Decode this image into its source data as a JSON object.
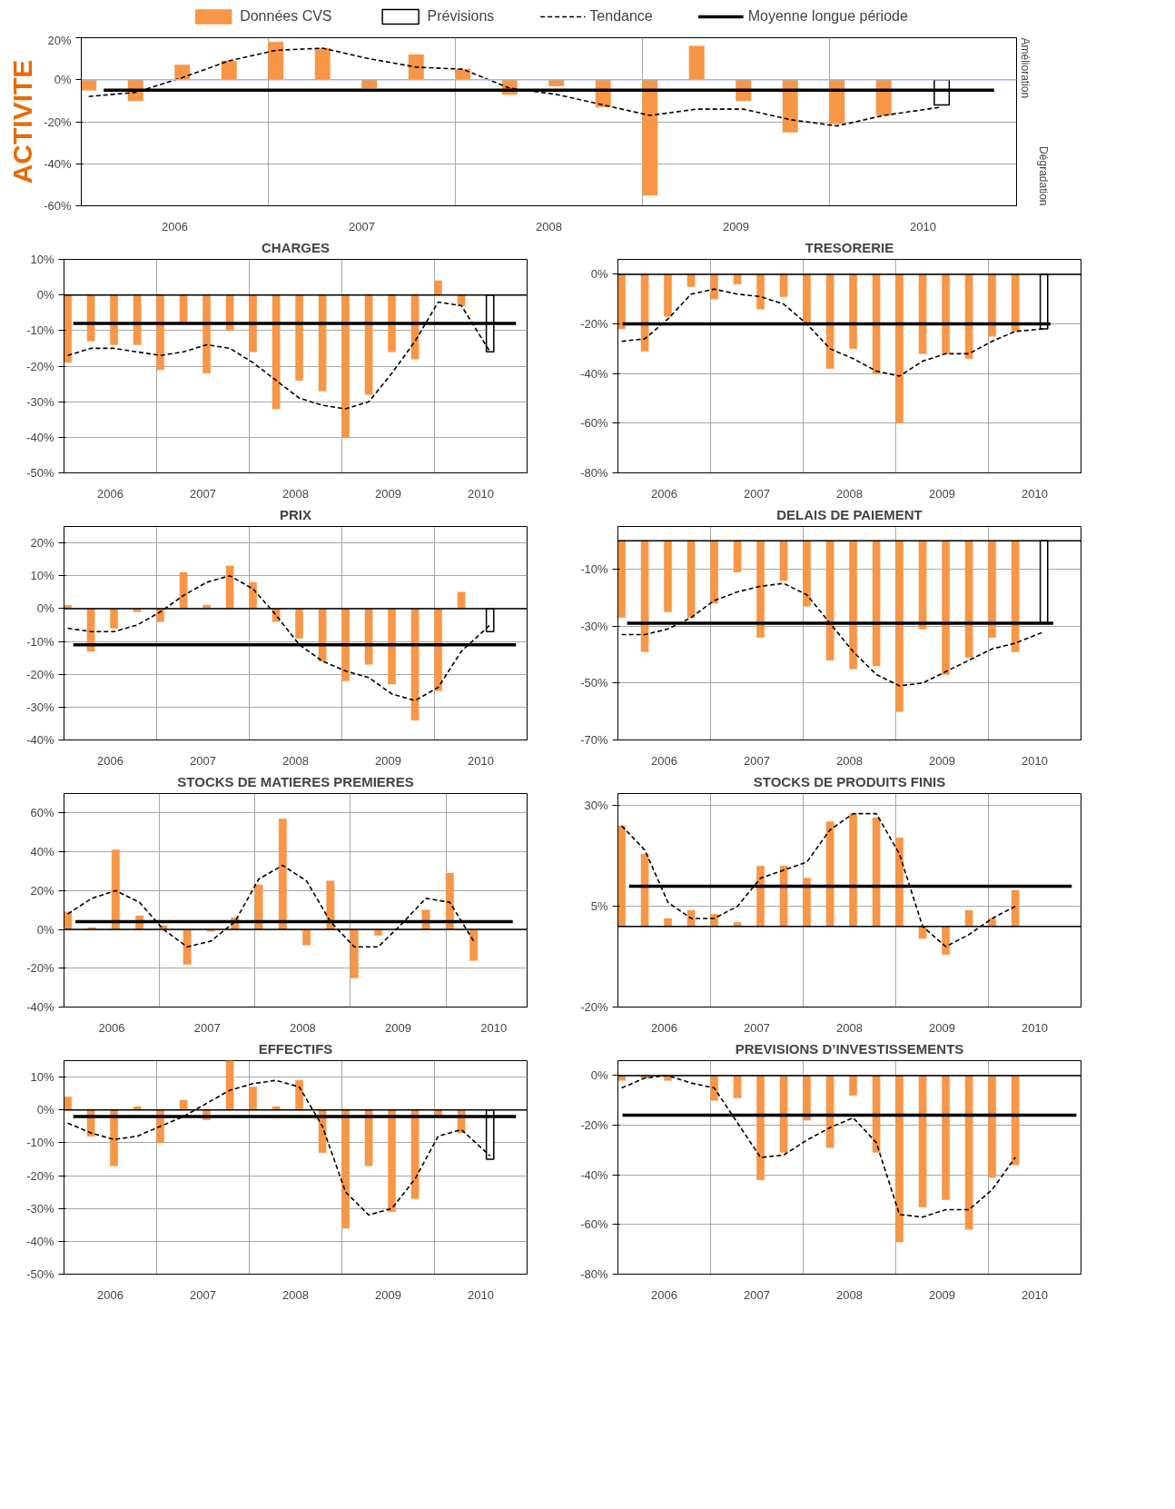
{
  "chart_data": [
    {
      "type": "bar",
      "title": "ACTIVITE",
      "legend": "top",
      "grid": true,
      "annotations": [
        "Amélioration",
        "Dégradation"
      ],
      "x": [
        2006.04,
        2006.29,
        2006.54,
        2006.79,
        2007.04,
        2007.29,
        2007.54,
        2007.79,
        2008.04,
        2008.29,
        2008.54,
        2008.79,
        2009.04,
        2009.29,
        2009.54,
        2009.79,
        2010.04,
        2010.29
      ],
      "xlim": [
        2006,
        2011
      ],
      "xticks": [
        {
          "value": 2006.5,
          "label": "2006"
        },
        {
          "value": 2007,
          "label": null
        },
        {
          "value": 2007.5,
          "label": "2007"
        },
        {
          "value": 2008,
          "label": null
        },
        {
          "value": 2008.5,
          "label": "2008"
        },
        {
          "value": 2009,
          "label": null
        },
        {
          "value": 2009.5,
          "label": "2009"
        },
        {
          "value": 2010,
          "label": null
        },
        {
          "value": 2010.5,
          "label": "2010"
        }
      ],
      "ylim": [
        -60,
        20
      ],
      "yticks": [
        {
          "value": -60,
          "label": "-60%"
        },
        {
          "value": -40,
          "label": "-40%"
        },
        {
          "value": -20,
          "label": "-20%"
        },
        {
          "value": 0,
          "label": "0%"
        },
        {
          "value": 20,
          "label": "20%"
        }
      ],
      "ref_lines": [
        {
          "axis": "y",
          "value": 0,
          "color": "#9db9e0"
        }
      ],
      "series": [
        {
          "name": "Données CVS",
          "color": "#f79646",
          "values": [
            -5,
            -10,
            7,
            9,
            18,
            15,
            -4,
            12,
            5,
            -7,
            -3,
            -13,
            -55,
            16,
            -10,
            -25,
            -21,
            -17
          ]
        },
        {
          "name": "Prévisions",
          "color": "#ffffff",
          "x": [
            2010.6
          ],
          "values": [
            -12
          ]
        },
        {
          "name": "Tendance",
          "type": "line",
          "line_style": "dashed",
          "color": "#000000",
          "x": [
            2006.04,
            2006.29,
            2006.54,
            2006.79,
            2007.04,
            2007.29,
            2007.54,
            2007.79,
            2008.04,
            2008.29,
            2008.54,
            2008.79,
            2009.04,
            2009.29,
            2009.54,
            2009.79,
            2010.04,
            2010.29,
            2010.6
          ],
          "values": [
            -8,
            -6,
            1,
            9,
            14,
            15,
            10,
            6,
            5,
            -4,
            -7,
            -12,
            -17,
            -14,
            -14,
            -19,
            -22,
            -17,
            -13
          ]
        },
        {
          "name": "Moyenne longue période",
          "type": "line",
          "line_style": "solid",
          "color": "#000000",
          "x": [
            2006.12,
            2010.88
          ],
          "values": [
            -5,
            -5
          ]
        }
      ]
    },
    {
      "type": "bar",
      "title": "CHARGES",
      "grid": true,
      "x": [
        2006.04,
        2006.29,
        2006.54,
        2006.79,
        2007.04,
        2007.29,
        2007.54,
        2007.79,
        2008.04,
        2008.29,
        2008.54,
        2008.79,
        2009.04,
        2009.29,
        2009.54,
        2009.79,
        2010.04,
        2010.29
      ],
      "xlim": [
        2006,
        2011
      ],
      "xticks": [
        {
          "value": 2006.5,
          "label": "2006"
        },
        {
          "value": 2007,
          "label": null
        },
        {
          "value": 2007.5,
          "label": "2007"
        },
        {
          "value": 2008,
          "label": null
        },
        {
          "value": 2008.5,
          "label": "2008"
        },
        {
          "value": 2009,
          "label": null
        },
        {
          "value": 2009.5,
          "label": "2009"
        },
        {
          "value": 2010,
          "label": null
        },
        {
          "value": 2010.5,
          "label": "2010"
        }
      ],
      "ylim": [
        -50,
        10
      ],
      "yticks": [
        {
          "value": -50,
          "label": "-50%"
        },
        {
          "value": -40,
          "label": "-40%"
        },
        {
          "value": -30,
          "label": "-30%"
        },
        {
          "value": -20,
          "label": "-20%"
        },
        {
          "value": -10,
          "label": "-10%"
        },
        {
          "value": 0,
          "label": "0%"
        },
        {
          "value": 10,
          "label": "10%"
        }
      ],
      "ref_lines": [
        {
          "axis": "y",
          "value": 0,
          "color": "#000000"
        }
      ],
      "series": [
        {
          "color": "#f79646",
          "values": [
            -19,
            -13,
            -14,
            -14,
            -21,
            -8,
            -22,
            -10,
            -16,
            -32,
            -24,
            -27,
            -40,
            -28,
            -16,
            -18,
            4,
            -3
          ]
        },
        {
          "color": "#ffffff",
          "x": [
            2010.6
          ],
          "values": [
            -16
          ]
        },
        {
          "type": "line",
          "line_style": "dashed",
          "color": "#000000",
          "x": [
            2006.04,
            2006.29,
            2006.54,
            2006.79,
            2007.04,
            2007.29,
            2007.54,
            2007.79,
            2008.04,
            2008.29,
            2008.54,
            2008.79,
            2009.04,
            2009.29,
            2009.54,
            2009.79,
            2010.04,
            2010.29,
            2010.6
          ],
          "values": [
            -17,
            -15,
            -15,
            -16,
            -17,
            -16,
            -14,
            -15,
            -19,
            -24,
            -29,
            -31,
            -32,
            -30,
            -22,
            -13,
            -2,
            -3,
            -16
          ]
        },
        {
          "type": "line",
          "line_style": "solid",
          "color": "#000000",
          "x": [
            2006.1,
            2010.88
          ],
          "values": [
            -8,
            -8
          ]
        }
      ]
    },
    {
      "type": "bar",
      "title": "TRESORERIE",
      "grid": true,
      "x": [
        2006.04,
        2006.29,
        2006.54,
        2006.79,
        2007.04,
        2007.29,
        2007.54,
        2007.79,
        2008.04,
        2008.29,
        2008.54,
        2008.79,
        2009.04,
        2009.29,
        2009.54,
        2009.79,
        2010.04,
        2010.29
      ],
      "xlim": [
        2006,
        2011
      ],
      "xticks": [
        {
          "value": 2006.5,
          "label": "2006"
        },
        {
          "value": 2007,
          "label": null
        },
        {
          "value": 2007.5,
          "label": "2007"
        },
        {
          "value": 2008,
          "label": null
        },
        {
          "value": 2008.5,
          "label": "2008"
        },
        {
          "value": 2009,
          "label": null
        },
        {
          "value": 2009.5,
          "label": "2009"
        },
        {
          "value": 2010,
          "label": null
        },
        {
          "value": 2010.5,
          "label": "2010"
        }
      ],
      "ylim": [
        -80,
        6
      ],
      "yticks": [
        {
          "value": -80,
          "label": "-80%"
        },
        {
          "value": -60,
          "label": "-60%"
        },
        {
          "value": -40,
          "label": "-40%"
        },
        {
          "value": -20,
          "label": "-20%"
        },
        {
          "value": 0,
          "label": "0%"
        }
      ],
      "ref_lines": [
        {
          "axis": "y",
          "value": 0,
          "color": "#000000"
        }
      ],
      "series": [
        {
          "color": "#f79646",
          "values": [
            -22,
            -31,
            -17,
            -5,
            -10,
            -4,
            -14,
            -9,
            -20,
            -38,
            -30,
            -40,
            -60,
            -32,
            -32,
            -34,
            -25,
            -23
          ]
        },
        {
          "color": "#ffffff",
          "x": [
            2010.6
          ],
          "values": [
            -22
          ]
        },
        {
          "type": "line",
          "line_style": "dashed",
          "color": "#000000",
          "x": [
            2006.04,
            2006.29,
            2006.54,
            2006.79,
            2007.04,
            2007.29,
            2007.54,
            2007.79,
            2008.04,
            2008.29,
            2008.54,
            2008.79,
            2009.04,
            2009.29,
            2009.54,
            2009.79,
            2010.04,
            2010.29,
            2010.6
          ],
          "values": [
            -27,
            -26,
            -18,
            -8,
            -6,
            -8,
            -9,
            -12,
            -20,
            -30,
            -34,
            -39,
            -41,
            -35,
            -32,
            -32,
            -27,
            -23,
            -22
          ]
        },
        {
          "type": "line",
          "line_style": "solid",
          "color": "#000000",
          "x": [
            2006.05,
            2010.67
          ],
          "values": [
            -20,
            -20
          ]
        }
      ]
    },
    {
      "type": "bar",
      "title": "PRIX",
      "grid": true,
      "x": [
        2006.04,
        2006.29,
        2006.54,
        2006.79,
        2007.04,
        2007.29,
        2007.54,
        2007.79,
        2008.04,
        2008.29,
        2008.54,
        2008.79,
        2009.04,
        2009.29,
        2009.54,
        2009.79,
        2010.04,
        2010.29
      ],
      "xlim": [
        2006,
        2011
      ],
      "xticks": [
        {
          "value": 2006.5,
          "label": "2006"
        },
        {
          "value": 2007,
          "label": null
        },
        {
          "value": 2007.5,
          "label": "2007"
        },
        {
          "value": 2008,
          "label": null
        },
        {
          "value": 2008.5,
          "label": "2008"
        },
        {
          "value": 2009,
          "label": null
        },
        {
          "value": 2009.5,
          "label": "2009"
        },
        {
          "value": 2010,
          "label": null
        },
        {
          "value": 2010.5,
          "label": "2010"
        }
      ],
      "ylim": [
        -40,
        25
      ],
      "yticks": [
        {
          "value": -40,
          "label": "-40%"
        },
        {
          "value": -30,
          "label": "-30%"
        },
        {
          "value": -20,
          "label": "-20%"
        },
        {
          "value": -10,
          "label": "-10%"
        },
        {
          "value": 0,
          "label": "0%"
        },
        {
          "value": 10,
          "label": "10%"
        },
        {
          "value": 20,
          "label": "20%"
        }
      ],
      "ref_lines": [
        {
          "axis": "y",
          "value": 0,
          "color": "#000000"
        }
      ],
      "series": [
        {
          "color": "#f79646",
          "values": [
            1,
            -13,
            -6,
            -1,
            -4,
            11,
            1,
            13,
            8,
            -4,
            -9,
            -16,
            -22,
            -17,
            -23,
            -34,
            -25,
            5
          ]
        },
        {
          "color": "#ffffff",
          "x": [
            2010.6
          ],
          "values": [
            -7
          ]
        },
        {
          "type": "line",
          "line_style": "dashed",
          "color": "#000000",
          "x": [
            2006.04,
            2006.29,
            2006.54,
            2006.79,
            2007.04,
            2007.29,
            2007.54,
            2007.79,
            2008.04,
            2008.29,
            2008.54,
            2008.79,
            2009.04,
            2009.29,
            2009.54,
            2009.79,
            2010.04,
            2010.29,
            2010.6
          ],
          "values": [
            -6,
            -7,
            -7,
            -5,
            -1,
            4,
            8,
            10,
            6,
            -2,
            -11,
            -16,
            -19,
            -21,
            -26,
            -28,
            -24,
            -13,
            -5
          ]
        },
        {
          "type": "line",
          "line_style": "solid",
          "color": "#000000",
          "x": [
            2006.1,
            2010.88
          ],
          "values": [
            -11,
            -11
          ]
        }
      ]
    },
    {
      "type": "bar",
      "title": "DELAIS DE PAIEMENT",
      "grid": true,
      "x": [
        2006.04,
        2006.29,
        2006.54,
        2006.79,
        2007.04,
        2007.29,
        2007.54,
        2007.79,
        2008.04,
        2008.29,
        2008.54,
        2008.79,
        2009.04,
        2009.29,
        2009.54,
        2009.79,
        2010.04,
        2010.29
      ],
      "xlim": [
        2006,
        2011
      ],
      "xticks": [
        {
          "value": 2006.5,
          "label": "2006"
        },
        {
          "value": 2007,
          "label": null
        },
        {
          "value": 2007.5,
          "label": "2007"
        },
        {
          "value": 2008,
          "label": null
        },
        {
          "value": 2008.5,
          "label": "2008"
        },
        {
          "value": 2009,
          "label": null
        },
        {
          "value": 2009.5,
          "label": "2009"
        },
        {
          "value": 2010,
          "label": null
        },
        {
          "value": 2010.5,
          "label": "2010"
        }
      ],
      "ylim": [
        -70,
        5
      ],
      "yticks": [
        {
          "value": -70,
          "label": "-70%"
        },
        {
          "value": -50,
          "label": "-50%"
        },
        {
          "value": -30,
          "label": "-30%"
        },
        {
          "value": -10,
          "label": "-10%"
        }
      ],
      "ref_lines": [
        {
          "axis": "y",
          "value": 0,
          "color": "#000000"
        }
      ],
      "series": [
        {
          "color": "#f79646",
          "values": [
            -27,
            -39,
            -25,
            -27,
            -22,
            -11,
            -34,
            -14,
            -23,
            -42,
            -45,
            -44,
            -60,
            -31,
            -47,
            -41,
            -34,
            -39
          ]
        },
        {
          "color": "#ffffff",
          "x": [
            2010.6
          ],
          "values": [
            -29
          ]
        },
        {
          "type": "line",
          "line_style": "dashed",
          "color": "#000000",
          "x": [
            2006.04,
            2006.29,
            2006.54,
            2006.79,
            2007.04,
            2007.29,
            2007.54,
            2007.79,
            2008.04,
            2008.29,
            2008.54,
            2008.79,
            2009.04,
            2009.29,
            2009.54,
            2009.79,
            2010.04,
            2010.29,
            2010.6
          ],
          "values": [
            -33,
            -33,
            -31,
            -27,
            -21,
            -18,
            -16,
            -15,
            -19,
            -29,
            -39,
            -47,
            -51,
            -50,
            -46,
            -42,
            -38,
            -36,
            -32
          ]
        },
        {
          "type": "line",
          "line_style": "solid",
          "color": "#000000",
          "x": [
            2006.1,
            2010.7
          ],
          "values": [
            -29,
            -29
          ]
        }
      ]
    },
    {
      "type": "bar",
      "title": "STOCKS DE MATIERES PREMIERES",
      "grid": true,
      "x": [
        2006.04,
        2006.29,
        2006.54,
        2006.79,
        2007.04,
        2007.29,
        2007.54,
        2007.79,
        2008.04,
        2008.29,
        2008.54,
        2008.79,
        2009.04,
        2009.29,
        2009.54,
        2009.79,
        2010.04,
        2010.29
      ],
      "xlim": [
        2006,
        2010.85
      ],
      "xticks": [
        {
          "value": 2006.5,
          "label": "2006"
        },
        {
          "value": 2007,
          "label": null
        },
        {
          "value": 2007.5,
          "label": "2007"
        },
        {
          "value": 2008,
          "label": null
        },
        {
          "value": 2008.5,
          "label": "2008"
        },
        {
          "value": 2009,
          "label": null
        },
        {
          "value": 2009.5,
          "label": "2009"
        },
        {
          "value": 2010,
          "label": null
        },
        {
          "value": 2010.5,
          "label": "2010"
        }
      ],
      "ylim": [
        -40,
        70
      ],
      "yticks": [
        {
          "value": -40,
          "label": "-40%"
        },
        {
          "value": -20,
          "label": "-20%"
        },
        {
          "value": 0,
          "label": "0%"
        },
        {
          "value": 20,
          "label": "20%"
        },
        {
          "value": 40,
          "label": "40%"
        },
        {
          "value": 60,
          "label": "60%"
        }
      ],
      "ref_lines": [
        {
          "axis": "y",
          "value": 0,
          "color": "#000000"
        }
      ],
      "series": [
        {
          "color": "#f79646",
          "values": [
            9,
            1,
            41,
            7,
            2,
            -18,
            -1,
            6,
            23,
            57,
            -8,
            25,
            -25,
            -3,
            null,
            10,
            29,
            -16
          ]
        },
        {
          "type": "line",
          "line_style": "dashed",
          "color": "#000000",
          "values": [
            8,
            16,
            20,
            14,
            0,
            -9,
            -6,
            4,
            26,
            33,
            25,
            4,
            -9,
            -9,
            3,
            16,
            14,
            -6
          ]
        },
        {
          "type": "line",
          "line_style": "solid",
          "color": "#000000",
          "x": [
            2006.12,
            2010.7
          ],
          "values": [
            4,
            4
          ]
        }
      ]
    },
    {
      "type": "bar",
      "title": "STOCKS DE PRODUITS FINIS",
      "grid": true,
      "x": [
        2006.04,
        2006.29,
        2006.54,
        2006.79,
        2007.04,
        2007.29,
        2007.54,
        2007.79,
        2008.04,
        2008.29,
        2008.54,
        2008.79,
        2009.04,
        2009.29,
        2009.54,
        2009.79,
        2010.04,
        2010.29
      ],
      "xlim": [
        2006,
        2011
      ],
      "xticks": [
        {
          "value": 2006.5,
          "label": "2006"
        },
        {
          "value": 2007,
          "label": null
        },
        {
          "value": 2007.5,
          "label": "2007"
        },
        {
          "value": 2008,
          "label": null
        },
        {
          "value": 2008.5,
          "label": "2008"
        },
        {
          "value": 2009,
          "label": null
        },
        {
          "value": 2009.5,
          "label": "2009"
        },
        {
          "value": 2010,
          "label": null
        },
        {
          "value": 2010.5,
          "label": "2010"
        }
      ],
      "ylim": [
        -20,
        33
      ],
      "yticks": [
        {
          "value": -20,
          "label": "-20%"
        },
        {
          "value": 5,
          "label": "5%"
        },
        {
          "value": 30,
          "label": "30%"
        }
      ],
      "ref_lines": [
        {
          "axis": "y",
          "value": 0,
          "color": "#000000"
        }
      ],
      "series": [
        {
          "color": "#f79646",
          "values": [
            25,
            18,
            2,
            4,
            3,
            1,
            15,
            15,
            12,
            26,
            28,
            27,
            22,
            -3,
            -7,
            4,
            2,
            9
          ]
        },
        {
          "type": "line",
          "line_style": "dashed",
          "color": "#000000",
          "values": [
            25,
            19,
            6,
            2,
            2,
            5,
            12,
            14,
            16,
            24,
            28,
            28,
            18,
            0,
            -5,
            -2,
            2,
            5
          ]
        },
        {
          "type": "line",
          "line_style": "solid",
          "color": "#000000",
          "x": [
            2006.12,
            2010.9
          ],
          "values": [
            10,
            10
          ]
        }
      ]
    },
    {
      "type": "bar",
      "title": "EFFECTIFS",
      "grid": true,
      "x": [
        2006.04,
        2006.29,
        2006.54,
        2006.79,
        2007.04,
        2007.29,
        2007.54,
        2007.79,
        2008.04,
        2008.29,
        2008.54,
        2008.79,
        2009.04,
        2009.29,
        2009.54,
        2009.79,
        2010.04,
        2010.29
      ],
      "xlim": [
        2006,
        2011
      ],
      "xticks": [
        {
          "value": 2006.5,
          "label": "2006"
        },
        {
          "value": 2007,
          "label": null
        },
        {
          "value": 2007.5,
          "label": "2007"
        },
        {
          "value": 2008,
          "label": null
        },
        {
          "value": 2008.5,
          "label": "2008"
        },
        {
          "value": 2009,
          "label": null
        },
        {
          "value": 2009.5,
          "label": "2009"
        },
        {
          "value": 2010,
          "label": null
        },
        {
          "value": 2010.5,
          "label": "2010"
        }
      ],
      "ylim": [
        -50,
        15
      ],
      "yticks": [
        {
          "value": -50,
          "label": "-50%"
        },
        {
          "value": -40,
          "label": "-40%"
        },
        {
          "value": -30,
          "label": "-30%"
        },
        {
          "value": -20,
          "label": "-20%"
        },
        {
          "value": -10,
          "label": "-10%"
        },
        {
          "value": 0,
          "label": "0%"
        },
        {
          "value": 10,
          "label": "10%"
        }
      ],
      "ref_lines": [
        {
          "axis": "y",
          "value": 0,
          "color": "#000000"
        }
      ],
      "series": [
        {
          "color": "#f79646",
          "values": [
            4,
            -8,
            -17,
            1,
            -10,
            3,
            -3,
            15,
            7,
            1,
            9,
            -13,
            -36,
            -17,
            -31,
            -27,
            -2,
            -7
          ]
        },
        {
          "color": "#ffffff",
          "x": [
            2010.6
          ],
          "values": [
            -15
          ]
        },
        {
          "type": "line",
          "line_style": "dashed",
          "color": "#000000",
          "x": [
            2006.04,
            2006.29,
            2006.54,
            2006.79,
            2007.04,
            2007.29,
            2007.54,
            2007.79,
            2008.04,
            2008.29,
            2008.54,
            2008.79,
            2009.04,
            2009.29,
            2009.54,
            2009.79,
            2010.04,
            2010.29,
            2010.6
          ],
          "values": [
            -4,
            -7,
            -9,
            -8,
            -5,
            -2,
            2,
            6,
            8,
            9,
            7,
            -5,
            -25,
            -32,
            -30,
            -21,
            -8,
            -6,
            -14
          ]
        },
        {
          "type": "line",
          "line_style": "solid",
          "color": "#000000",
          "x": [
            2006.1,
            2010.88
          ],
          "values": [
            -2,
            -2
          ]
        }
      ]
    },
    {
      "type": "bar",
      "title": "PREVISIONS D’INVESTISSEMENTS",
      "grid": true,
      "x": [
        2006.04,
        2006.29,
        2006.54,
        2006.79,
        2007.04,
        2007.29,
        2007.54,
        2007.79,
        2008.04,
        2008.29,
        2008.54,
        2008.79,
        2009.04,
        2009.29,
        2009.54,
        2009.79,
        2010.04,
        2010.29
      ],
      "xlim": [
        2006,
        2011
      ],
      "xticks": [
        {
          "value": 2006.5,
          "label": "2006"
        },
        {
          "value": 2007,
          "label": null
        },
        {
          "value": 2007.5,
          "label": "2007"
        },
        {
          "value": 2008,
          "label": null
        },
        {
          "value": 2008.5,
          "label": "2008"
        },
        {
          "value": 2009,
          "label": null
        },
        {
          "value": 2009.5,
          "label": "2009"
        },
        {
          "value": 2010,
          "label": null
        },
        {
          "value": 2010.5,
          "label": "2010"
        }
      ],
      "ylim": [
        -80,
        6
      ],
      "yticks": [
        {
          "value": -80,
          "label": "-80%"
        },
        {
          "value": -60,
          "label": "-60%"
        },
        {
          "value": -40,
          "label": "-40%"
        },
        {
          "value": -20,
          "label": "-20%"
        },
        {
          "value": 0,
          "label": "0%"
        }
      ],
      "ref_lines": [
        {
          "axis": "y",
          "value": 0,
          "color": "#000000"
        }
      ],
      "series": [
        {
          "color": "#f79646",
          "values": [
            -2,
            -1,
            -2,
            null,
            -10,
            -9,
            -42,
            -31,
            -18,
            -29,
            -8,
            -31,
            -67,
            -53,
            -50,
            -62,
            -41,
            -36
          ]
        },
        {
          "type": "line",
          "line_style": "dashed",
          "color": "#000000",
          "values": [
            -5,
            -1,
            0,
            -3,
            -5,
            -19,
            -33,
            -32,
            -26,
            -21,
            -17,
            -27,
            -56,
            -57,
            -54,
            -54,
            -46,
            -33
          ]
        },
        {
          "type": "line",
          "line_style": "solid",
          "color": "#000000",
          "x": [
            2006.05,
            2010.95
          ],
          "values": [
            -16,
            -16
          ]
        }
      ]
    }
  ]
}
